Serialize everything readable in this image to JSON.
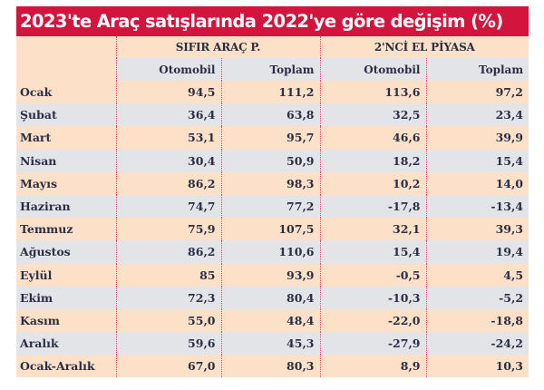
{
  "title": "2023'te Araç satışlarında 2022'ye göre değişim (%)",
  "colors": {
    "title_bg": "#d3143c",
    "title_text": "#ffffff",
    "row_peach": "#fde0c8",
    "row_gray": "#e3e4e8",
    "text": "#2b2f45",
    "divider": "#e0436a"
  },
  "headers": {
    "group1": "SIFIR ARAÇ P.",
    "group2": "2'NCİ EL PİYASA",
    "sub": [
      "Otomobil",
      "Toplam",
      "Otomobil",
      "Toplam"
    ]
  },
  "rows": [
    {
      "label": "Ocak",
      "values": [
        "94,5",
        "111,2",
        "113,6",
        "97,2"
      ]
    },
    {
      "label": "Şubat",
      "values": [
        "36,4",
        "63,8",
        "32,5",
        "23,4"
      ]
    },
    {
      "label": "Mart",
      "values": [
        "53,1",
        "95,7",
        "46,6",
        "39,9"
      ]
    },
    {
      "label": "Nisan",
      "values": [
        "30,4",
        "50,9",
        "18,2",
        "15,4"
      ]
    },
    {
      "label": "Mayıs",
      "values": [
        "86,2",
        "98,3",
        "10,2",
        "14,0"
      ]
    },
    {
      "label": "Haziran",
      "values": [
        "74,7",
        "77,2",
        "-17,8",
        "-13,4"
      ]
    },
    {
      "label": "Temmuz",
      "values": [
        "75,9",
        "107,5",
        "32,1",
        "39,3"
      ]
    },
    {
      "label": "Ağustos",
      "values": [
        "86,2",
        "110,6",
        "15,4",
        "19,4"
      ]
    },
    {
      "label": "Eylül",
      "values": [
        "85",
        "93,9",
        "-0,5",
        "4,5"
      ]
    },
    {
      "label": "Ekim",
      "values": [
        "72,3",
        "80,4",
        "-10,3",
        "-5,2"
      ]
    },
    {
      "label": "Kasım",
      "values": [
        "55,0",
        "48,4",
        "-22,0",
        "-18,8"
      ]
    },
    {
      "label": "Aralık",
      "values": [
        "59,6",
        "45,3",
        "-27,9",
        "-24,2"
      ]
    },
    {
      "label": "Ocak-Aralık",
      "values": [
        "67,0",
        "80,3",
        "8,9",
        "10,3"
      ]
    }
  ],
  "chart_data": {
    "type": "table",
    "title": "2023'te Araç satışlarında 2022'ye göre değişim (%)",
    "column_groups": [
      {
        "name": "SIFIR ARAÇ P.",
        "columns": [
          "Otomobil",
          "Toplam"
        ]
      },
      {
        "name": "2'NCİ EL PİYASA",
        "columns": [
          "Otomobil",
          "Toplam"
        ]
      }
    ],
    "columns": [
      "SIFIR ARAÇ P. Otomobil",
      "SIFIR ARAÇ P. Toplam",
      "2'NCİ EL PİYASA Otomobil",
      "2'NCİ EL PİYASA Toplam"
    ],
    "categories": [
      "Ocak",
      "Şubat",
      "Mart",
      "Nisan",
      "Mayıs",
      "Haziran",
      "Temmuz",
      "Ağustos",
      "Eylül",
      "Ekim",
      "Kasım",
      "Aralık",
      "Ocak-Aralık"
    ],
    "series": [
      {
        "name": "SIFIR ARAÇ P. - Otomobil",
        "values": [
          94.5,
          36.4,
          53.1,
          30.4,
          86.2,
          74.7,
          75.9,
          86.2,
          85,
          72.3,
          55.0,
          59.6,
          67.0
        ]
      },
      {
        "name": "SIFIR ARAÇ P. - Toplam",
        "values": [
          111.2,
          63.8,
          95.7,
          50.9,
          98.3,
          77.2,
          107.5,
          110.6,
          93.9,
          80.4,
          48.4,
          45.3,
          80.3
        ]
      },
      {
        "name": "2'NCİ EL PİYASA - Otomobil",
        "values": [
          113.6,
          32.5,
          46.6,
          18.2,
          10.2,
          -17.8,
          32.1,
          15.4,
          -0.5,
          -10.3,
          -22.0,
          -27.9,
          8.9
        ]
      },
      {
        "name": "2'NCİ EL PİYASA - Toplam",
        "values": [
          97.2,
          23.4,
          39.9,
          15.4,
          14.0,
          -13.4,
          39.3,
          19.4,
          4.5,
          -5.2,
          -18.8,
          -24.2,
          10.3
        ]
      }
    ],
    "unit": "%"
  }
}
